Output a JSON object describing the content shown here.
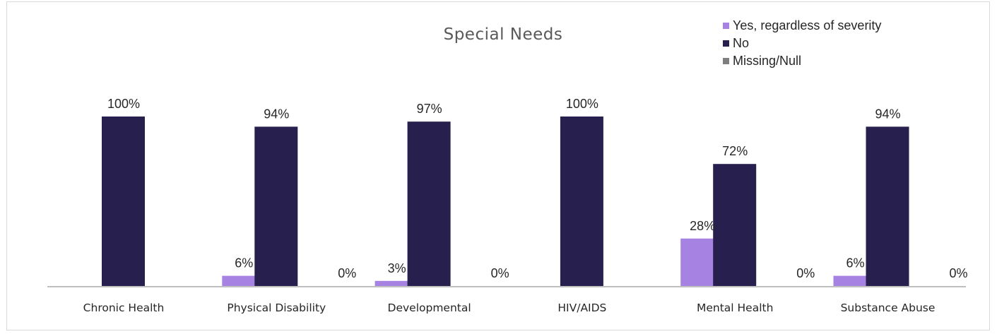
{
  "chart_data": {
    "type": "bar",
    "title": "Special Needs",
    "categories": [
      "Chronic Health",
      "Physical Disability",
      "Developmental",
      "HIV/AIDS",
      "Mental Health",
      "Substance Abuse"
    ],
    "series": [
      {
        "name": "Yes, regardless of severity",
        "color": "#a683e2",
        "values": [
          0,
          6,
          3,
          0,
          28,
          6
        ],
        "labels": [
          "",
          "6%",
          "3%",
          "",
          "28%",
          "6%"
        ]
      },
      {
        "name": "No",
        "color": "#271f4d",
        "values": [
          100,
          94,
          97,
          100,
          72,
          94
        ],
        "labels": [
          "100%",
          "94%",
          "97%",
          "100%",
          "72%",
          "94%"
        ]
      },
      {
        "name": "Missing/Null",
        "color": "#7f7f7f",
        "values": [
          0,
          0,
          0,
          0,
          0,
          0
        ],
        "labels": [
          "",
          "0%",
          "0%",
          "",
          "0%",
          "0%"
        ]
      }
    ],
    "ylim": [
      0,
      100
    ],
    "grid": false,
    "legend": "top-right"
  }
}
